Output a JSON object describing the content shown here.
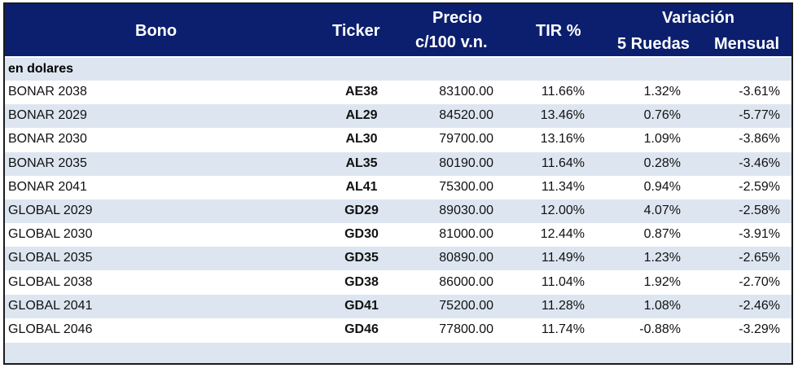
{
  "header": {
    "bono": "Bono",
    "ticker": "Ticker",
    "precio_line1": "Precio",
    "precio_line2": "c/100 v.n.",
    "tir": "TIR %",
    "variacion": "Variación",
    "ruedas": "5 Ruedas",
    "mensual": "Mensual"
  },
  "section_label": "en dolares",
  "rows": [
    {
      "bono": "BONAR 2038",
      "ticker": "AE38",
      "precio": "83100.00",
      "tir": "11.66%",
      "ruedas": "1.32%",
      "mensual": "-3.61%"
    },
    {
      "bono": "BONAR 2029",
      "ticker": "AL29",
      "precio": "84520.00",
      "tir": "13.46%",
      "ruedas": "0.76%",
      "mensual": "-5.77%"
    },
    {
      "bono": "BONAR 2030",
      "ticker": "AL30",
      "precio": "79700.00",
      "tir": "13.16%",
      "ruedas": "1.09%",
      "mensual": "-3.86%"
    },
    {
      "bono": "BONAR 2035",
      "ticker": "AL35",
      "precio": "80190.00",
      "tir": "11.64%",
      "ruedas": "0.28%",
      "mensual": "-3.46%"
    },
    {
      "bono": "BONAR 2041",
      "ticker": "AL41",
      "precio": "75300.00",
      "tir": "11.34%",
      "ruedas": "0.94%",
      "mensual": "-2.59%"
    },
    {
      "bono": "GLOBAL 2029",
      "ticker": "GD29",
      "precio": "89030.00",
      "tir": "12.00%",
      "ruedas": "4.07%",
      "mensual": "-2.58%"
    },
    {
      "bono": "GLOBAL 2030",
      "ticker": "GD30",
      "precio": "81000.00",
      "tir": "12.44%",
      "ruedas": "0.87%",
      "mensual": "-3.91%"
    },
    {
      "bono": "GLOBAL 2035",
      "ticker": "GD35",
      "precio": "80890.00",
      "tir": "11.49%",
      "ruedas": "1.23%",
      "mensual": "-2.65%"
    },
    {
      "bono": "GLOBAL 2038",
      "ticker": "GD38",
      "precio": "86000.00",
      "tir": "11.04%",
      "ruedas": "1.92%",
      "mensual": "-2.70%"
    },
    {
      "bono": "GLOBAL 2041",
      "ticker": "GD41",
      "precio": "75200.00",
      "tir": "11.28%",
      "ruedas": "1.08%",
      "mensual": "-2.46%"
    },
    {
      "bono": "GLOBAL 2046",
      "ticker": "GD46",
      "precio": "77800.00",
      "tir": "11.74%",
      "ruedas": "-0.88%",
      "mensual": "-3.29%"
    }
  ],
  "colors": {
    "header_bg": "#0b1f6e",
    "alt_row_bg": "#dde6f0"
  }
}
